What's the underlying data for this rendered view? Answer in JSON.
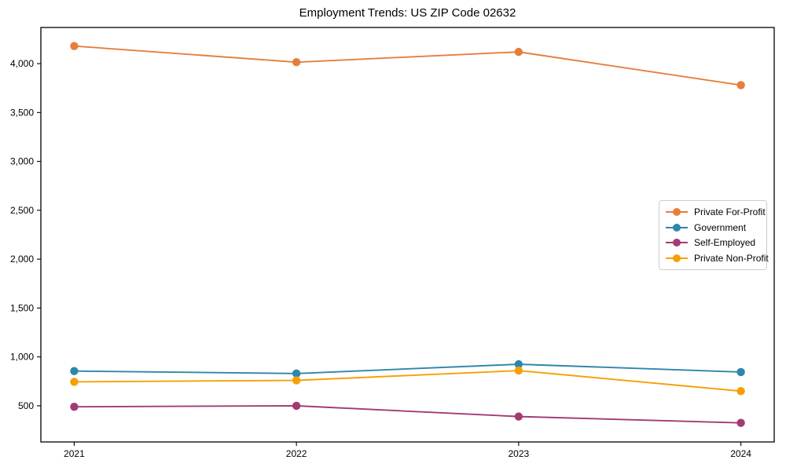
{
  "title": "Employment Trends: US ZIP Code 02632",
  "chart_data": {
    "type": "line",
    "title": "Employment Trends: US ZIP Code 02632",
    "xlabel": "",
    "ylabel": "",
    "x": [
      2021,
      2022,
      2023,
      2024
    ],
    "x_tick_labels": [
      "2021",
      "2022",
      "2023",
      "2024"
    ],
    "xlim": [
      2020.85,
      2024.15
    ],
    "ylim": [
      130,
      4370
    ],
    "yticks": [
      500,
      1000,
      1500,
      2000,
      2500,
      3000,
      3500,
      4000
    ],
    "ytick_labels": [
      "500",
      "1,000",
      "1,500",
      "2,000",
      "2,500",
      "3,000",
      "3,500",
      "4,000"
    ],
    "grid": false,
    "marker": "circle",
    "legend_position": "center right",
    "series": [
      {
        "name": "Private For-Profit",
        "color": "#E57E3D",
        "values": [
          4180,
          4015,
          4120,
          3780
        ]
      },
      {
        "name": "Government",
        "color": "#2E86AB",
        "values": [
          855,
          830,
          925,
          845
        ]
      },
      {
        "name": "Self-Employed",
        "color": "#A23B72",
        "values": [
          490,
          500,
          390,
          325
        ]
      },
      {
        "name": "Private Non-Profit",
        "color": "#F4A104",
        "values": [
          745,
          760,
          860,
          650
        ]
      }
    ]
  }
}
